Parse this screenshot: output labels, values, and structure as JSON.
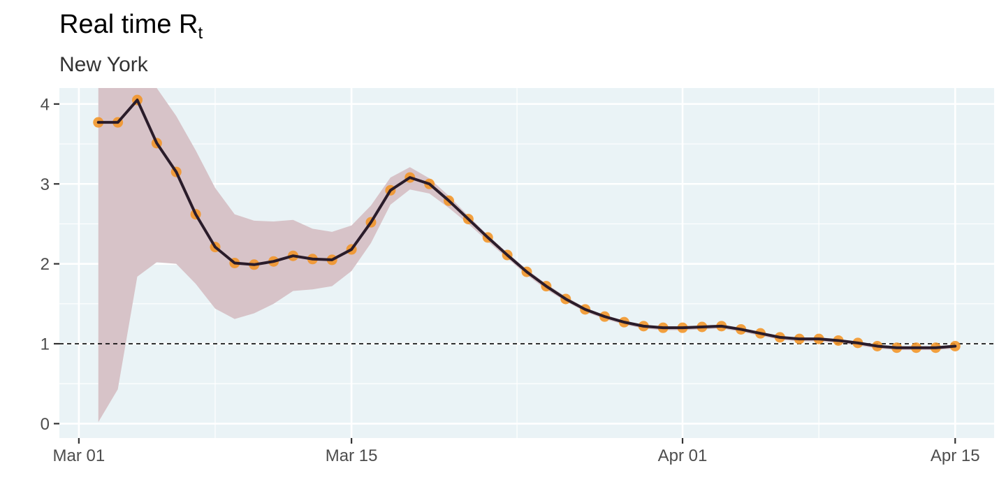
{
  "chart_data": {
    "type": "line",
    "title": "Real time R",
    "title_subscript": "t",
    "subtitle": "New York",
    "xlabel": "",
    "ylabel": "",
    "x_start": "2020-03-02",
    "x_ticks": [
      "Mar 01",
      "Mar 15",
      "Apr 01",
      "Apr 15"
    ],
    "x_tick_dates": [
      "2020-03-01",
      "2020-03-15",
      "2020-04-01",
      "2020-04-15"
    ],
    "xlim": [
      "2020-02-29",
      "2020-04-17"
    ],
    "y_ticks": [
      0,
      1,
      2,
      3,
      4
    ],
    "ylim": [
      -0.18,
      4.2
    ],
    "reference_line": 1,
    "grid": true,
    "legend": "none",
    "colors": {
      "panel": "#eaf3f6",
      "grid": "#ffffff",
      "band": "#d7c3c8",
      "line": "#2a1c2a",
      "points": "#f39425",
      "reference": "#000000"
    },
    "series": [
      {
        "values": [
          3.77,
          3.77,
          4.05,
          3.51,
          3.15,
          2.62,
          2.21,
          2.01,
          1.99,
          2.03,
          2.1,
          2.06,
          2.05,
          2.18,
          2.52,
          2.92,
          3.08,
          3.0,
          2.79,
          2.56,
          2.33,
          2.11,
          1.9,
          1.72,
          1.56,
          1.43,
          1.34,
          1.27,
          1.22,
          1.2,
          1.2,
          1.21,
          1.22,
          1.18,
          1.13,
          1.08,
          1.06,
          1.06,
          1.04,
          1.01,
          0.97,
          0.95,
          0.95,
          0.95,
          0.97
        ]
      }
    ],
    "upper": [
      4.25,
      4.25,
      4.25,
      4.25,
      3.85,
      3.42,
      2.95,
      2.62,
      2.54,
      2.53,
      2.55,
      2.44,
      2.4,
      2.48,
      2.73,
      3.08,
      3.21,
      3.07,
      2.85,
      2.6,
      2.36,
      2.14,
      1.93,
      1.75,
      1.59,
      1.45,
      1.36,
      1.29,
      1.24,
      1.22,
      1.22,
      1.23,
      1.24,
      1.2,
      1.15,
      1.1,
      1.08,
      1.08,
      1.06,
      1.03,
      0.99,
      0.97,
      0.97,
      0.97,
      0.99
    ],
    "lower": [
      0.02,
      0.43,
      1.84,
      2.02,
      2.0,
      1.75,
      1.44,
      1.31,
      1.38,
      1.5,
      1.66,
      1.68,
      1.72,
      1.91,
      2.26,
      2.74,
      2.93,
      2.88,
      2.7,
      2.5,
      2.28,
      2.07,
      1.86,
      1.68,
      1.53,
      1.4,
      1.31,
      1.24,
      1.19,
      1.17,
      1.17,
      1.18,
      1.19,
      1.15,
      1.1,
      1.05,
      1.03,
      1.03,
      1.01,
      0.98,
      0.94,
      0.92,
      0.92,
      0.92,
      0.94
    ]
  }
}
